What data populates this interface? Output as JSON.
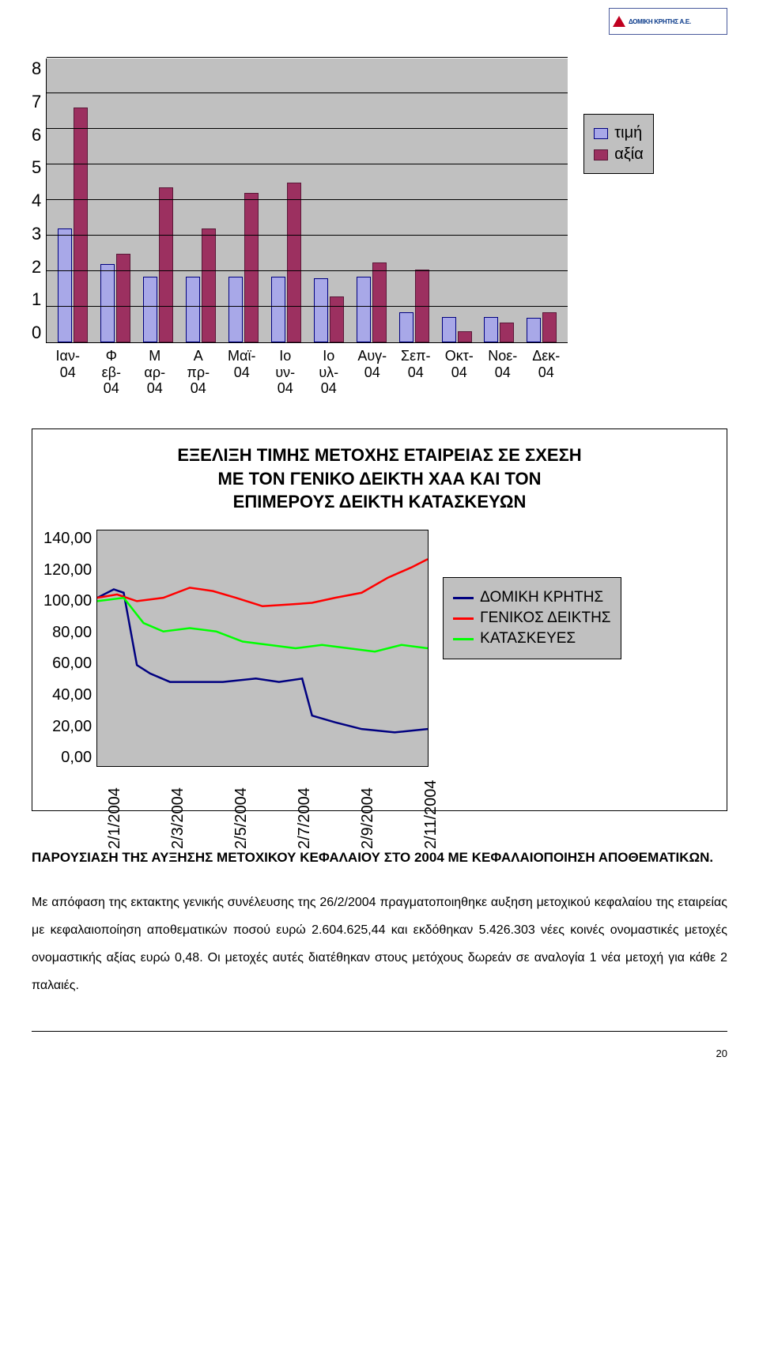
{
  "logo_text": "ΔΟΜΙΚΗ ΚΡΗΤΗΣ Α.Ε.",
  "bar_chart": {
    "type": "bar",
    "ylim": [
      0,
      8
    ],
    "ytick_step": 1,
    "categories": [
      "Ιαν-04",
      "Φεβ-04",
      "Μαρ-04",
      "Απρ-04",
      "Μαϊ-04",
      "Ιουν-04",
      "Ιουλ-04",
      "Αυγ-04",
      "Σεπ-04",
      "Οκτ-04",
      "Νοε-04",
      "Δεκ-04"
    ],
    "x_labels_2line": [
      [
        "Ιαν-",
        "04"
      ],
      [
        "Φ",
        "εβ-",
        "04"
      ],
      [
        "Μ",
        "αρ-",
        "04"
      ],
      [
        "Α",
        "πρ-",
        "04"
      ],
      [
        "Μαϊ-",
        "04"
      ],
      [
        "Ιο",
        "υν-",
        "04"
      ],
      [
        "Ιο",
        "υλ-",
        "04"
      ],
      [
        "Αυγ-",
        "04"
      ],
      [
        "Σεπ-",
        "04"
      ],
      [
        "Οκτ-",
        "04"
      ],
      [
        "Νοε-",
        "04"
      ],
      [
        "Δεκ-",
        "04"
      ]
    ],
    "series": [
      {
        "name": "τιμή",
        "color": "#a8a8e8",
        "border": "#000080",
        "values": [
          3.2,
          2.2,
          1.85,
          1.85,
          1.85,
          1.85,
          1.8,
          1.85,
          0.85,
          0.72,
          0.72,
          0.7
        ]
      },
      {
        "name": "αξία",
        "color": "#9c3060",
        "border": "#5a1838",
        "values": [
          6.6,
          2.5,
          4.35,
          3.2,
          4.2,
          4.5,
          1.3,
          2.25,
          2.05,
          0.32,
          0.55,
          0.85
        ]
      }
    ],
    "background_color": "#c0c0c0",
    "grid_color": "#000000",
    "label_fontsize": 20
  },
  "line_chart": {
    "type": "line",
    "title_lines": [
      "ΕΞΕΛΙΞΗ ΤΙΜΗΣ ΜΕΤΟΧΗΣ ΕΤΑΙΡΕΙΑΣ ΣΕ ΣΧΕΣΗ",
      "ΜΕ ΤΟΝ ΓΕΝΙΚΟ ΔΕΙΚΤΗ ΧΑΑ ΚΑΙ ΤΟΝ",
      "ΕΠΙΜΕΡΟΥΣ ΔΕΙΚΤΗ ΚΑΤΑΣΚΕΥΩΝ"
    ],
    "ylim": [
      0,
      140
    ],
    "ytick_step": 20,
    "yticks": [
      "140,00",
      "120,00",
      "100,00",
      "80,00",
      "60,00",
      "40,00",
      "20,00",
      "0,00"
    ],
    "x_labels": [
      "2/1/2004",
      "2/3/2004",
      "2/5/2004",
      "2/7/2004",
      "2/9/2004",
      "2/11/2004"
    ],
    "series": [
      {
        "name": "ΔΟΜΙΚΗ ΚΡΗΤΗΣ",
        "color": "#000080",
        "points": [
          [
            0,
            100
          ],
          [
            5,
            105
          ],
          [
            8,
            103
          ],
          [
            12,
            60
          ],
          [
            16,
            55
          ],
          [
            22,
            50
          ],
          [
            30,
            50
          ],
          [
            38,
            50
          ],
          [
            48,
            52
          ],
          [
            55,
            50
          ],
          [
            62,
            52
          ],
          [
            65,
            30
          ],
          [
            72,
            26
          ],
          [
            80,
            22
          ],
          [
            90,
            20
          ],
          [
            100,
            22
          ]
        ]
      },
      {
        "name": "ΓΕΝΙΚΟΣ ΔΕΙΚΤΗΣ",
        "color": "#ff0000",
        "points": [
          [
            0,
            100
          ],
          [
            6,
            102
          ],
          [
            12,
            98
          ],
          [
            20,
            100
          ],
          [
            28,
            106
          ],
          [
            35,
            104
          ],
          [
            42,
            100
          ],
          [
            50,
            95
          ],
          [
            58,
            96
          ],
          [
            65,
            97
          ],
          [
            72,
            100
          ],
          [
            80,
            103
          ],
          [
            88,
            112
          ],
          [
            95,
            118
          ],
          [
            100,
            123
          ]
        ]
      },
      {
        "name": "ΚΑΤΑΣΚΕΥΕΣ",
        "color": "#00ff00",
        "points": [
          [
            0,
            98
          ],
          [
            8,
            100
          ],
          [
            14,
            85
          ],
          [
            20,
            80
          ],
          [
            28,
            82
          ],
          [
            36,
            80
          ],
          [
            44,
            74
          ],
          [
            52,
            72
          ],
          [
            60,
            70
          ],
          [
            68,
            72
          ],
          [
            76,
            70
          ],
          [
            84,
            68
          ],
          [
            92,
            72
          ],
          [
            100,
            70
          ]
        ]
      }
    ],
    "background_color": "#c0c0c0",
    "line_width": 2.5,
    "label_fontsize": 20
  },
  "section_heading": "ΠΑΡΟΥΣΙΑΣΗ ΤΗΣ ΑΥΞΗΣΗΣ ΜΕΤΟΧΙΚΟΥ ΚΕΦΑΛΑΙΟΥ ΣΤΟ 2004 ΜΕ ΚΕΦΑΛΑΙΟΠΟΙΗΣΗ ΑΠΟΘΕΜΑΤΙΚΩΝ.",
  "body_text": "Με απόφαση της εκτακτης γενικής συνέλευσης της 26/2/2004 πραγματοποιηθηκε αυξηση μετοχικού κεφαλαίου της εταιρείας με κεφαλαιοποίηση αποθεματικών ποσού ευρώ 2.604.625,44 και εκδόθηκαν 5.426.303 νέες κοινές ονομαστικές μετοχές ονομαστικής αξίας ευρώ 0,48. Οι μετοχές αυτές διατέθηκαν στους μετόχους δωρεάν σε αναλογία 1 νέα μετοχή για κάθε 2 παλαιές.",
  "page_number": "20"
}
